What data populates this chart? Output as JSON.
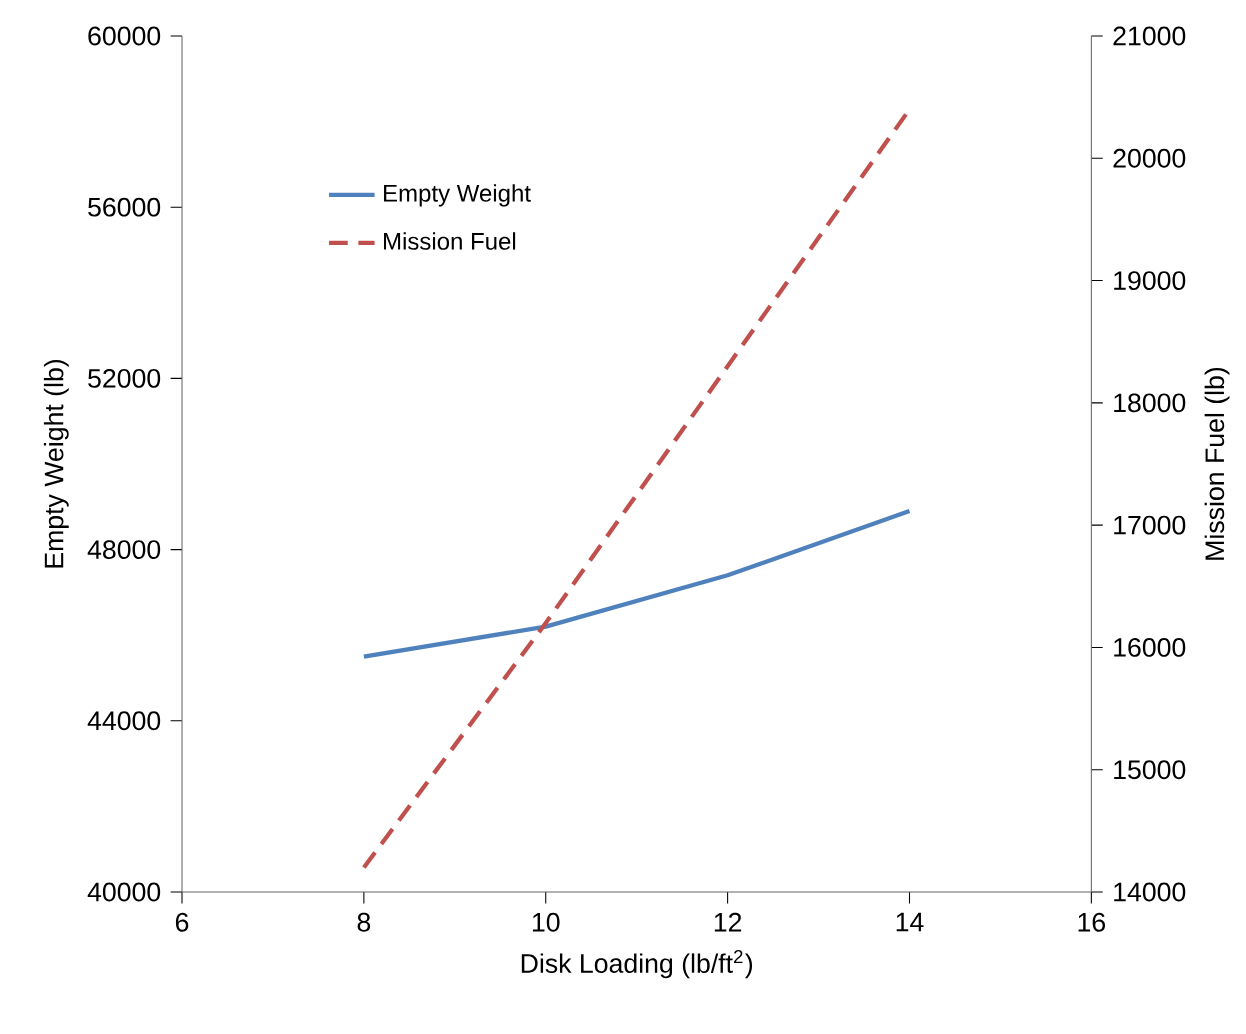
{
  "chart_data": {
    "type": "line",
    "xlabel": "Disk Loading (lb/ft$^{2}$)",
    "ylabel": "Empty Weight (lb)",
    "y2label": "Mission Fuel (lb)",
    "x": [
      8,
      10,
      12,
      14
    ],
    "series": [
      {
        "name": "Empty Weight",
        "color": "#4f81bd",
        "values": [
          45500,
          46200,
          47400,
          48900
        ],
        "line_style": "solid"
      },
      {
        "name": "Mission Fuel",
        "color": "#c0504d",
        "values": [
          14200,
          16200,
          18300,
          20400
        ],
        "axis": "y2",
        "line_style": "dashed"
      }
    ],
    "xlim": [
      6,
      16
    ],
    "xticks": [
      6,
      8,
      10,
      12,
      14,
      16
    ],
    "ylim": [
      40000,
      60000
    ],
    "yticks": [
      40000,
      44000,
      48000,
      52000,
      56000,
      60000
    ],
    "y2lim": [
      14000,
      21000
    ],
    "y2ticks": [
      14000,
      15000,
      16000,
      17000,
      18000,
      19000,
      20000,
      21000
    ],
    "legend": "top left",
    "grid": false,
    "marker": "none"
  }
}
